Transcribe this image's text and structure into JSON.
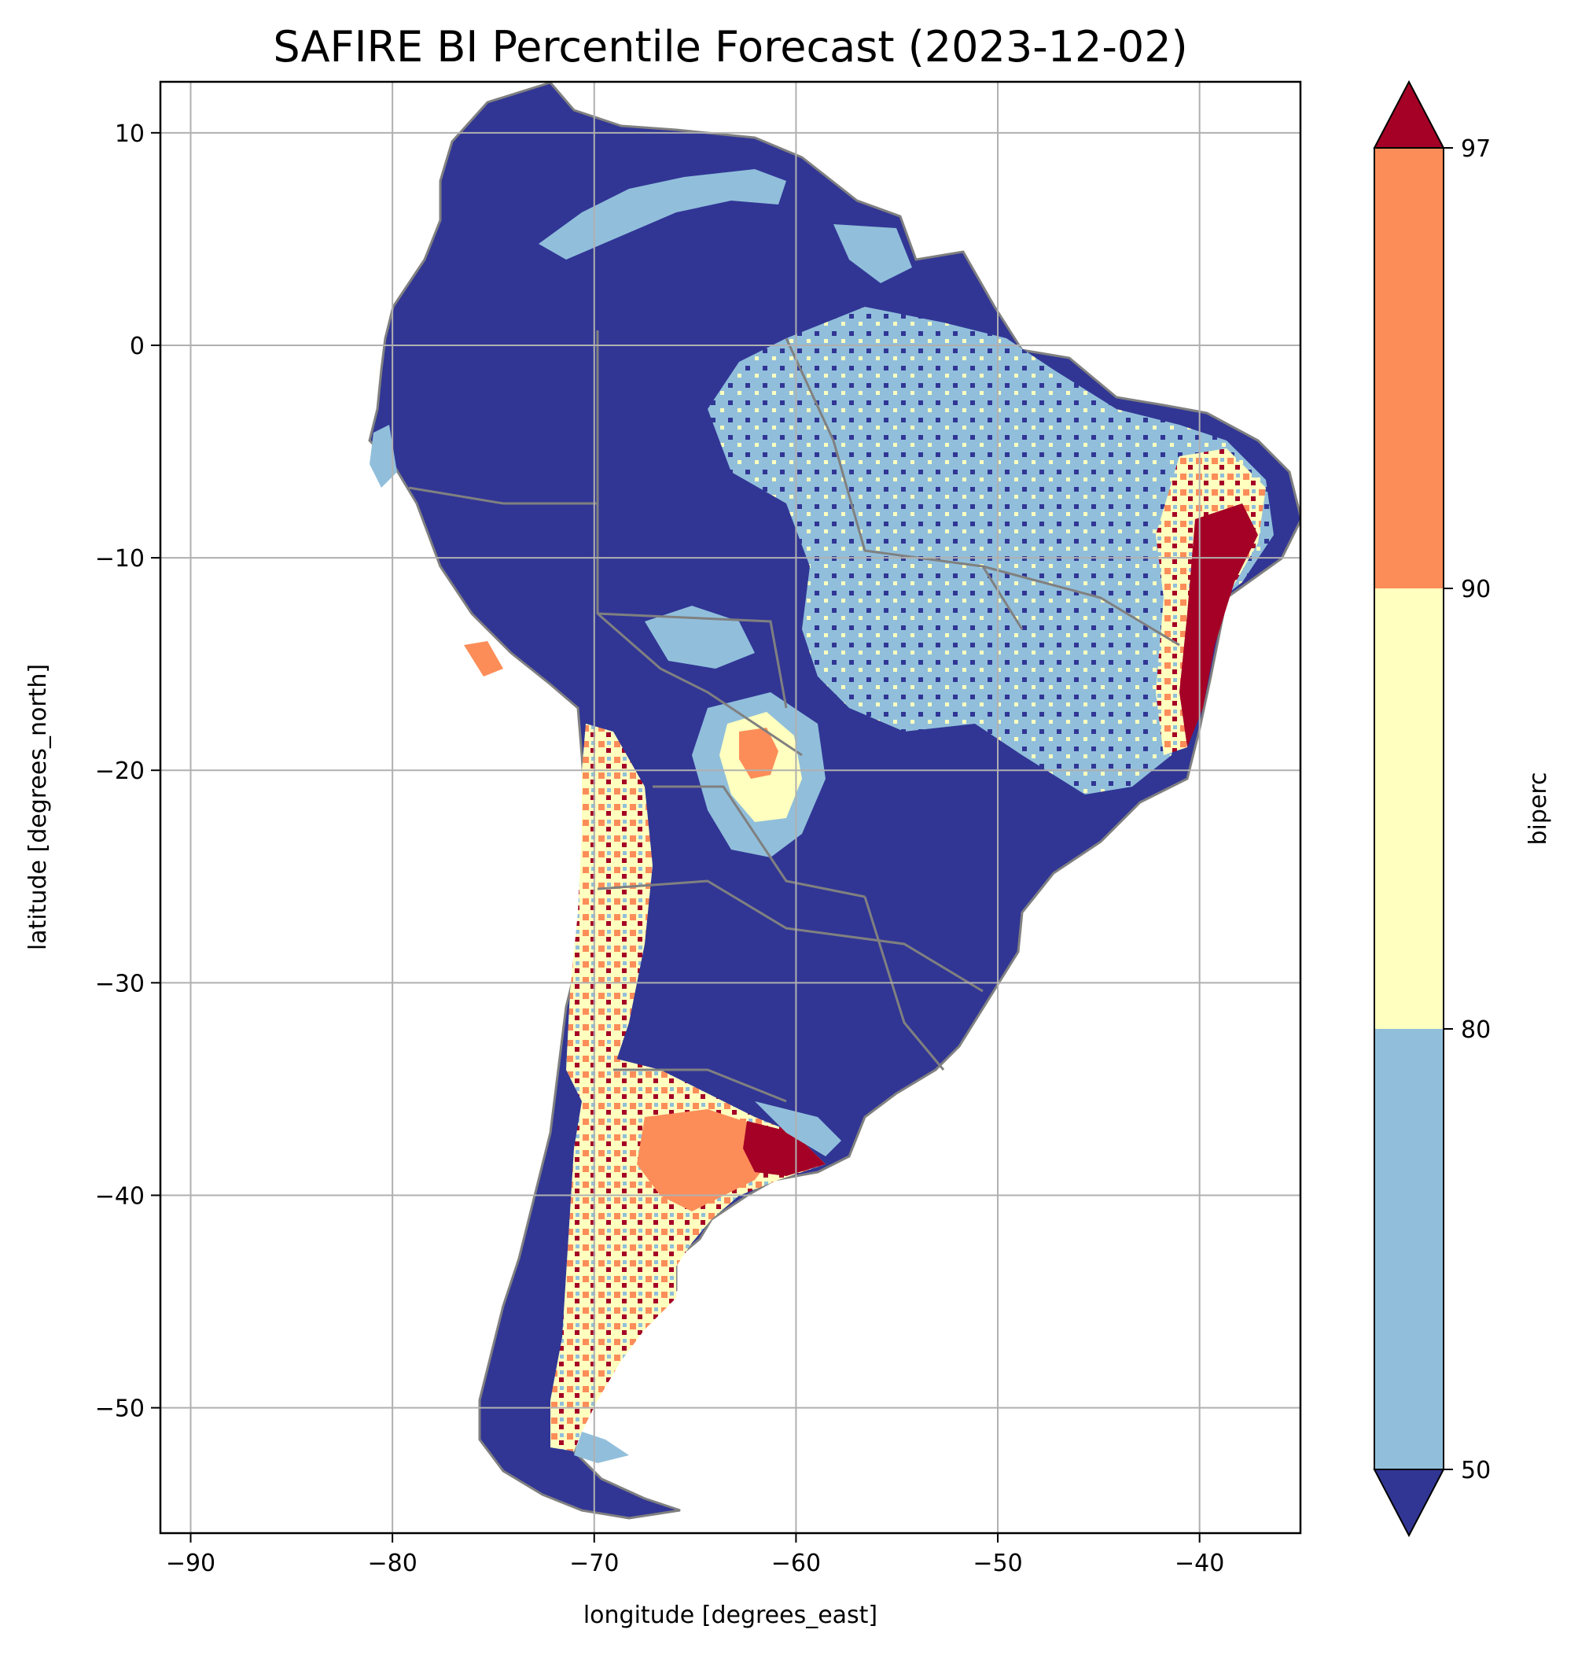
{
  "title": "SAFIRE BI Percentile Forecast (2023-12-02)",
  "map": {
    "x_axis": {
      "label": "longitude [degrees_east]",
      "range": [
        -91.5,
        -35
      ],
      "ticks": [
        -90,
        -80,
        -70,
        -60,
        -50,
        -40
      ],
      "tick_labels": [
        "−90",
        "−80",
        "−70",
        "−60",
        "−50",
        "−40"
      ]
    },
    "y_axis": {
      "label": "latitude [degrees_north]",
      "range": [
        -55.9,
        12.4
      ],
      "ticks": [
        10,
        0,
        -10,
        -20,
        -30,
        -40,
        -50
      ],
      "tick_labels": [
        "10",
        "0",
        "−10",
        "−20",
        "−30",
        "−40",
        "−50"
      ]
    },
    "grid": true,
    "region": "South America",
    "border_color": "#808080",
    "grid_color": "#b0b0b0"
  },
  "colorbar": {
    "label": "biperc",
    "extend": "both",
    "ticks": [
      "97",
      "90",
      "80",
      "50"
    ],
    "levels": [
      50,
      80,
      90,
      97
    ],
    "colors": {
      "below_50": "#313695",
      "50_80": "#91bfdb",
      "80_90": "#ffffbf",
      "90_97": "#fc8d59",
      "above_97": "#a50026"
    }
  }
}
